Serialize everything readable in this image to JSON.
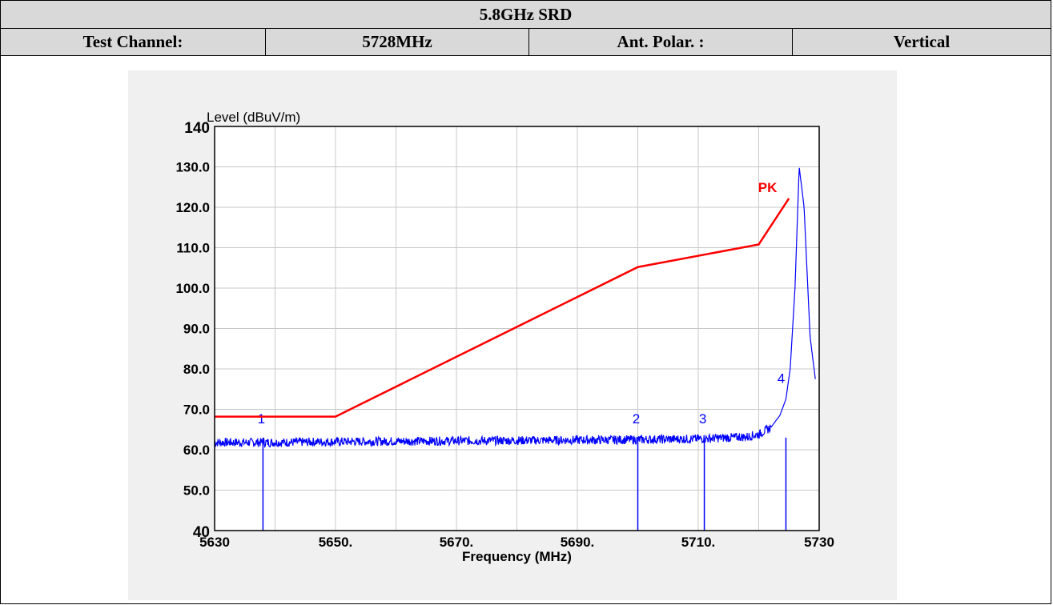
{
  "header": {
    "title": "5.8GHz SRD",
    "test_channel_label": "Test Channel:",
    "test_channel_value": "5728MHz",
    "ant_polar_label": "Ant. Polar. :",
    "ant_polar_value": "Vertical"
  },
  "chart_data": {
    "type": "line",
    "ylabel": "Level (dBuV/m)",
    "xlabel": "Frequency (MHz)",
    "xlim": [
      5630,
      5730
    ],
    "ylim": [
      40,
      140
    ],
    "x_tick_values": [
      5630,
      5650,
      5670,
      5690,
      5710,
      5730
    ],
    "x_tick_labels": [
      "5630",
      "5650.",
      "5670.",
      "5690.",
      "5710.",
      "5730"
    ],
    "y_tick_values": [
      40,
      50,
      60,
      70,
      80,
      90,
      100,
      110,
      120,
      130,
      140
    ],
    "y_tick_labels": [
      "40",
      "50.0",
      "60.0",
      "70.0",
      "80.0",
      "90.0",
      "100.0",
      "110.0",
      "120.0",
      "130.0",
      "140"
    ],
    "grid": true,
    "series": [
      {
        "name": "PK",
        "color": "#ff0000",
        "x": [
          5630,
          5650,
          5700,
          5720,
          5725
        ],
        "y": [
          68.2,
          68.2,
          105.2,
          110.8,
          122.2
        ]
      },
      {
        "name": "",
        "color": "#0000ff",
        "x": [
          5630,
          5640,
          5650,
          5660,
          5670,
          5680,
          5690,
          5700,
          5710,
          5718,
          5720,
          5722,
          5723.5,
          5724.5,
          5725.2,
          5726,
          5726.7,
          5727.5,
          5728.5,
          5729.4
        ],
        "y": [
          61.8,
          61.8,
          62.0,
          62.1,
          62.2,
          62.3,
          62.4,
          62.5,
          62.7,
          63.2,
          63.8,
          65.5,
          68.5,
          72.5,
          80,
          100,
          130,
          120,
          88,
          77
        ]
      }
    ],
    "markers": [
      {
        "label": "1",
        "x": 5638
      },
      {
        "label": "2",
        "x": 5700
      },
      {
        "label": "3",
        "x": 5711
      },
      {
        "label": "4",
        "x": 5724.5
      }
    ],
    "annotations": [
      {
        "text": "PK",
        "x": 5722,
        "y": 125
      }
    ]
  }
}
